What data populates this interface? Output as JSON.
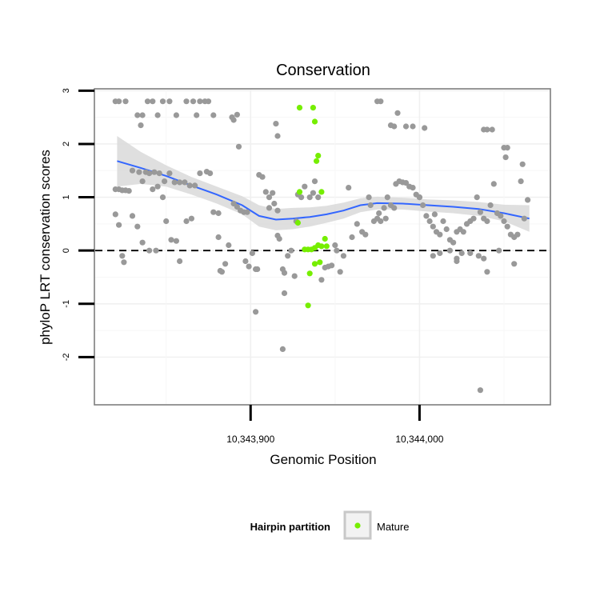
{
  "chart_data": {
    "type": "scatter",
    "title": "Conservation",
    "xlabel": "Genomic Position",
    "ylabel": "phyloP LRT conservation scores",
    "xlim": [
      10343808,
      10344077
    ],
    "ylim": [
      -2.88,
      3.02
    ],
    "x_ticks": [
      10343900,
      10344000
    ],
    "x_tick_labels": [
      "10,343,900",
      "10,344,000"
    ],
    "y_ticks": [
      -2,
      -1,
      0,
      1,
      2,
      3
    ],
    "y_tick_labels": [
      "-2",
      "-1",
      "0",
      "1",
      "2",
      "3"
    ],
    "reference_line": {
      "y": 0,
      "style": "dashed"
    },
    "grid": true,
    "legend": {
      "title": "Hairpin partition",
      "position": "bottom",
      "entries": [
        {
          "label": "Mature",
          "color": "#76ee00"
        }
      ]
    },
    "colors": {
      "other": "#999999",
      "mature": "#76ee00",
      "smooth": "#3366ff",
      "band": "#d9d9d9"
    },
    "series": [
      {
        "name": "",
        "color": "#999999",
        "points": [
          [
            10343820,
            2.8
          ],
          [
            10343822,
            2.8
          ],
          [
            10343826,
            2.8
          ],
          [
            10343833,
            2.54
          ],
          [
            10343836,
            2.54
          ],
          [
            10343839,
            2.8
          ],
          [
            10343842,
            2.8
          ],
          [
            10343845,
            2.54
          ],
          [
            10343848,
            2.8
          ],
          [
            10343852,
            2.8
          ],
          [
            10343856,
            2.54
          ],
          [
            10343862,
            2.8
          ],
          [
            10343866,
            2.8
          ],
          [
            10343868,
            2.54
          ],
          [
            10343870,
            2.8
          ],
          [
            10343873,
            2.8
          ],
          [
            10343875,
            2.8
          ],
          [
            10343878,
            2.54
          ],
          [
            10343835,
            2.35
          ],
          [
            10343889,
            2.5
          ],
          [
            10343892,
            2.55
          ],
          [
            10343890,
            2.45
          ],
          [
            10343893,
            1.95
          ],
          [
            10343916,
            2.15
          ],
          [
            10343915,
            2.38
          ],
          [
            10343975,
            2.8
          ],
          [
            10343977,
            2.8
          ],
          [
            10343987,
            2.58
          ],
          [
            10343983,
            2.35
          ],
          [
            10343985,
            2.33
          ],
          [
            10343992,
            2.33
          ],
          [
            10343996,
            2.33
          ],
          [
            10344003,
            2.3
          ],
          [
            10344038,
            2.27
          ],
          [
            10344040,
            2.27
          ],
          [
            10344043,
            2.27
          ],
          [
            10344050,
            1.93
          ],
          [
            10344052,
            1.93
          ],
          [
            10344051,
            1.75
          ],
          [
            10344061,
            1.62
          ],
          [
            10343820,
            1.15
          ],
          [
            10343822,
            1.15
          ],
          [
            10343824,
            1.13
          ],
          [
            10343826,
            1.13
          ],
          [
            10343828,
            1.12
          ],
          [
            10343830,
            1.5
          ],
          [
            10343834,
            1.47
          ],
          [
            10343838,
            1.47
          ],
          [
            10343840,
            1.45
          ],
          [
            10343843,
            1.47
          ],
          [
            10343846,
            1.45
          ],
          [
            10343849,
            1.3
          ],
          [
            10343852,
            1.45
          ],
          [
            10343855,
            1.28
          ],
          [
            10343858,
            1.28
          ],
          [
            10343861,
            1.28
          ],
          [
            10343864,
            1.22
          ],
          [
            10343867,
            1.22
          ],
          [
            10343836,
            1.3
          ],
          [
            10343842,
            1.15
          ],
          [
            10343845,
            1.2
          ],
          [
            10343848,
            1.0
          ],
          [
            10343820,
            0.68
          ],
          [
            10343822,
            0.48
          ],
          [
            10343824,
            -0.1
          ],
          [
            10343825,
            -0.22
          ],
          [
            10343830,
            0.65
          ],
          [
            10343833,
            0.45
          ],
          [
            10343836,
            0.15
          ],
          [
            10343840,
            0.0
          ],
          [
            10343844,
            0.0
          ],
          [
            10343850,
            0.55
          ],
          [
            10343853,
            0.2
          ],
          [
            10343856,
            0.18
          ],
          [
            10343858,
            -0.2
          ],
          [
            10343862,
            0.55
          ],
          [
            10343865,
            0.6
          ],
          [
            10343870,
            1.45
          ],
          [
            10343874,
            1.48
          ],
          [
            10343876,
            1.45
          ],
          [
            10343878,
            0.72
          ],
          [
            10343881,
            0.7
          ],
          [
            10343881,
            0.25
          ],
          [
            10343882,
            -0.38
          ],
          [
            10343883,
            -0.4
          ],
          [
            10343885,
            -0.25
          ],
          [
            10343887,
            0.1
          ],
          [
            10343890,
            0.88
          ],
          [
            10343892,
            0.82
          ],
          [
            10343894,
            0.75
          ],
          [
            10343896,
            0.72
          ],
          [
            10343898,
            0.72
          ],
          [
            10343897,
            -0.2
          ],
          [
            10343899,
            -0.3
          ],
          [
            10343901,
            -0.05
          ],
          [
            10343903,
            -0.35
          ],
          [
            10343904,
            -0.35
          ],
          [
            10343905,
            1.42
          ],
          [
            10343907,
            1.38
          ],
          [
            10343909,
            1.1
          ],
          [
            10343911,
            1.0
          ],
          [
            10343911,
            0.8
          ],
          [
            10343913,
            1.08
          ],
          [
            10343914,
            0.88
          ],
          [
            10343916,
            0.75
          ],
          [
            10343916,
            0.28
          ],
          [
            10343917,
            0.22
          ],
          [
            10343919,
            -0.35
          ],
          [
            10343920,
            -0.42
          ],
          [
            10343922,
            -0.1
          ],
          [
            10343924,
            0.0
          ],
          [
            10343926,
            -0.48
          ],
          [
            10343903,
            -1.15
          ],
          [
            10343920,
            -0.8
          ],
          [
            10343919,
            -1.85
          ],
          [
            10343927,
            0.55
          ],
          [
            10343928,
            1.05
          ],
          [
            10343930,
            1.0
          ],
          [
            10343932,
            1.2
          ],
          [
            10343935,
            1.0
          ],
          [
            10343937,
            1.08
          ],
          [
            10343938,
            1.3
          ],
          [
            10343940,
            1.0
          ],
          [
            10343942,
            -0.55
          ],
          [
            10343944,
            -0.32
          ],
          [
            10343946,
            -0.3
          ],
          [
            10343948,
            -0.28
          ],
          [
            10343950,
            0.1
          ],
          [
            10343951,
            0.0
          ],
          [
            10343953,
            -0.4
          ],
          [
            10343955,
            -0.1
          ],
          [
            10343958,
            1.18
          ],
          [
            10343960,
            0.25
          ],
          [
            10343963,
            0.5
          ],
          [
            10343966,
            0.35
          ],
          [
            10343968,
            0.3
          ],
          [
            10343970,
            1.0
          ],
          [
            10343971,
            0.85
          ],
          [
            10343973,
            0.55
          ],
          [
            10343975,
            0.6
          ],
          [
            10343977,
            0.55
          ],
          [
            10343979,
            0.8
          ],
          [
            10343981,
            1.0
          ],
          [
            10343983,
            0.85
          ],
          [
            10343985,
            0.8
          ],
          [
            10343988,
            1.3
          ],
          [
            10343990,
            1.28
          ],
          [
            10343992,
            1.27
          ],
          [
            10343994,
            1.2
          ],
          [
            10343996,
            1.18
          ],
          [
            10343998,
            1.05
          ],
          [
            10344000,
            1.0
          ],
          [
            10344002,
            0.85
          ],
          [
            10344004,
            0.65
          ],
          [
            10344006,
            0.55
          ],
          [
            10344008,
            0.45
          ],
          [
            10344010,
            0.35
          ],
          [
            10344012,
            0.3
          ],
          [
            10344014,
            0.55
          ],
          [
            10344016,
            0.4
          ],
          [
            10344018,
            0.2
          ],
          [
            10344020,
            0.15
          ],
          [
            10344022,
            0.35
          ],
          [
            10344024,
            0.4
          ],
          [
            10344026,
            0.35
          ],
          [
            10344028,
            0.5
          ],
          [
            10344030,
            0.55
          ],
          [
            10344032,
            0.6
          ],
          [
            10344034,
            1.0
          ],
          [
            10344036,
            0.72
          ],
          [
            10344038,
            0.6
          ],
          [
            10344040,
            0.55
          ],
          [
            10344042,
            0.85
          ],
          [
            10344044,
            1.25
          ],
          [
            10344046,
            0.7
          ],
          [
            10344048,
            0.65
          ],
          [
            10344050,
            0.55
          ],
          [
            10344052,
            0.45
          ],
          [
            10344054,
            0.3
          ],
          [
            10344056,
            0.25
          ],
          [
            10344058,
            0.3
          ],
          [
            10344060,
            1.3
          ],
          [
            10344062,
            0.6
          ],
          [
            10344064,
            0.95
          ],
          [
            10344008,
            -0.1
          ],
          [
            10344012,
            -0.05
          ],
          [
            10344018,
            0.0
          ],
          [
            10344022,
            -0.15
          ],
          [
            10344025,
            -0.05
          ],
          [
            10344030,
            -0.05
          ],
          [
            10344035,
            -0.1
          ],
          [
            10344038,
            -0.15
          ],
          [
            10344040,
            -0.4
          ],
          [
            10344047,
            0.0
          ],
          [
            10344056,
            -0.25
          ],
          [
            10344022,
            -0.2
          ],
          [
            10343976,
            0.7
          ],
          [
            10343986,
            1.25
          ],
          [
            10344000,
            1.0
          ],
          [
            10343980,
            0.6
          ],
          [
            10344009,
            0.68
          ],
          [
            10344036,
            -2.62
          ]
        ]
      },
      {
        "name": "Mature",
        "color": "#76ee00",
        "points": [
          [
            10343929,
            2.68
          ],
          [
            10343937,
            2.68
          ],
          [
            10343938,
            2.42
          ],
          [
            10343940,
            1.78
          ],
          [
            10343939,
            1.68
          ],
          [
            10343942,
            1.1
          ],
          [
            10343929,
            1.1
          ],
          [
            10343928,
            0.52
          ],
          [
            10343932,
            0.02
          ],
          [
            10343934,
            0.02
          ],
          [
            10343936,
            0.02
          ],
          [
            10343938,
            0.05
          ],
          [
            10343940,
            0.1
          ],
          [
            10343942,
            0.08
          ],
          [
            10343944,
            0.22
          ],
          [
            10343945,
            0.08
          ],
          [
            10343935,
            -0.43
          ],
          [
            10343938,
            -0.25
          ],
          [
            10343941,
            -0.22
          ],
          [
            10343934,
            -1.03
          ]
        ]
      }
    ],
    "smooth": {
      "x": [
        10343821,
        10343835,
        10343850,
        10343865,
        10343880,
        10343895,
        10343905,
        10343915,
        10343925,
        10343935,
        10343945,
        10343955,
        10343965,
        10343975,
        10343990,
        10344005,
        10344020,
        10344035,
        10344050,
        10344065
      ],
      "y": [
        1.68,
        1.55,
        1.4,
        1.22,
        1.05,
        0.85,
        0.65,
        0.58,
        0.6,
        0.63,
        0.68,
        0.75,
        0.85,
        0.89,
        0.88,
        0.85,
        0.82,
        0.78,
        0.7,
        0.6
      ],
      "ci_lower": [
        1.2,
        1.25,
        1.2,
        1.05,
        0.88,
        0.68,
        0.45,
        0.38,
        0.4,
        0.45,
        0.52,
        0.6,
        0.72,
        0.77,
        0.77,
        0.73,
        0.7,
        0.65,
        0.55,
        0.35
      ],
      "ci_upper": [
        2.15,
        1.85,
        1.6,
        1.38,
        1.2,
        1.02,
        0.85,
        0.78,
        0.8,
        0.81,
        0.84,
        0.9,
        0.98,
        1.01,
        0.99,
        0.96,
        0.94,
        0.91,
        0.86,
        0.85
      ]
    }
  }
}
